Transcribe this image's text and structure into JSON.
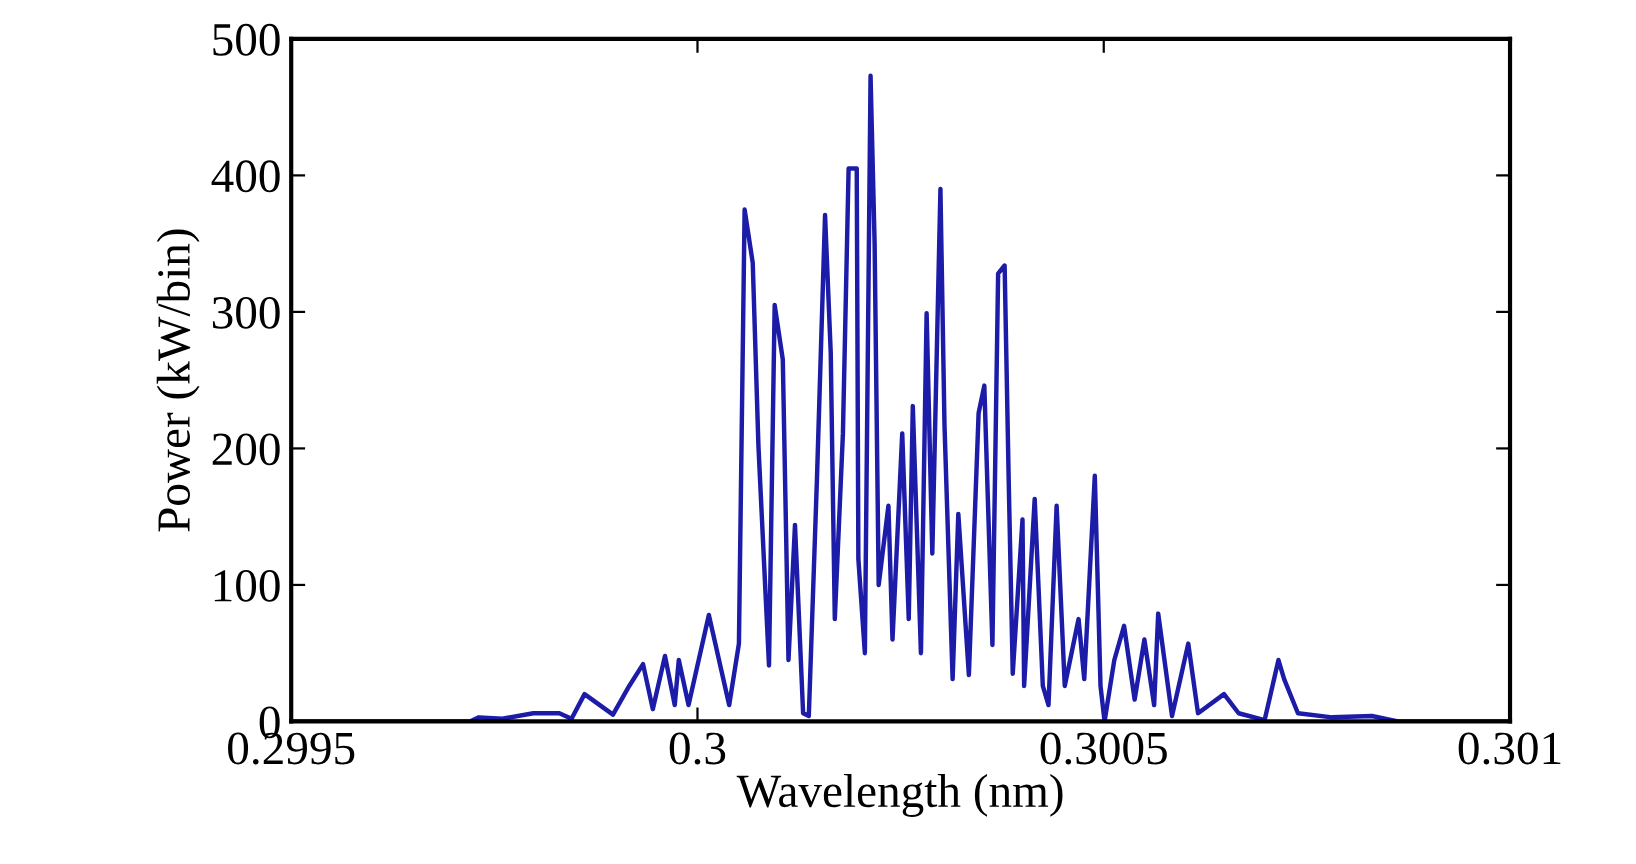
{
  "chart_data": {
    "type": "line",
    "xlabel": "Wavelength (nm)",
    "ylabel": "Power (kW/bin)",
    "xlim": [
      0.2995,
      0.301
    ],
    "xticks": [
      0.2995,
      0.3,
      0.3005,
      0.301
    ],
    "ylim": [
      0,
      500
    ],
    "yticks": [
      0,
      100,
      200,
      300,
      400,
      500
    ],
    "grid": false,
    "legend": false,
    "series": [
      {
        "color": "#1c1ca8",
        "x": [
          0.2995,
          0.29972,
          0.299731,
          0.29976,
          0.299798,
          0.29983,
          0.299845,
          0.299861,
          0.299896,
          0.299916,
          0.299933,
          0.299945,
          0.29996,
          0.299972,
          0.299977,
          0.299989,
          0.300014,
          0.300039,
          0.300051,
          0.300058,
          0.300068,
          0.300075,
          0.300088,
          0.300095,
          0.300105,
          0.300112,
          0.30012,
          0.30013,
          0.300137,
          0.300147,
          0.300157,
          0.300164,
          0.300169,
          0.300179,
          0.300186,
          0.300196,
          0.300198,
          0.300206,
          0.300213,
          0.300218,
          0.300223,
          0.300235,
          0.30024,
          0.300252,
          0.30026,
          0.300265,
          0.300275,
          0.300282,
          0.300289,
          0.300299,
          0.300304,
          0.300314,
          0.300321,
          0.300334,
          0.300346,
          0.300353,
          0.300363,
          0.30037,
          0.300378,
          0.300383,
          0.300388,
          0.3004,
          0.300402,
          0.300415,
          0.300425,
          0.300432,
          0.300442,
          0.300452,
          0.300469,
          0.300476,
          0.300489,
          0.300496,
          0.300501,
          0.300513,
          0.300525,
          0.300538,
          0.30055,
          0.300562,
          0.300567,
          0.300584,
          0.300604,
          0.300616,
          0.300648,
          0.300666,
          0.300698,
          0.300715,
          0.300722,
          0.300739,
          0.300781,
          0.30083,
          0.300862,
          0.301
        ],
        "values": [
          0,
          0,
          3,
          2,
          6,
          6,
          2,
          20,
          5,
          26,
          42,
          9,
          48,
          12,
          45,
          12,
          78,
          12,
          57,
          375,
          336,
          202,
          41,
          305,
          265,
          45,
          144,
          6,
          4,
          177,
          371,
          270,
          75,
          211,
          405,
          405,
          119,
          50,
          473,
          350,
          100,
          158,
          60,
          211,
          75,
          231,
          50,
          299,
          123,
          390,
          217,
          31,
          152,
          34,
          226,
          246,
          56,
          328,
          334,
          177,
          35,
          148,
          26,
          163,
          26,
          12,
          158,
          26,
          75,
          31,
          180,
          26,
          0,
          45,
          70,
          16,
          60,
          12,
          79,
          4,
          57,
          6,
          20,
          6,
          1,
          45,
          31,
          6,
          3,
          4,
          0,
          0
        ]
      }
    ]
  }
}
